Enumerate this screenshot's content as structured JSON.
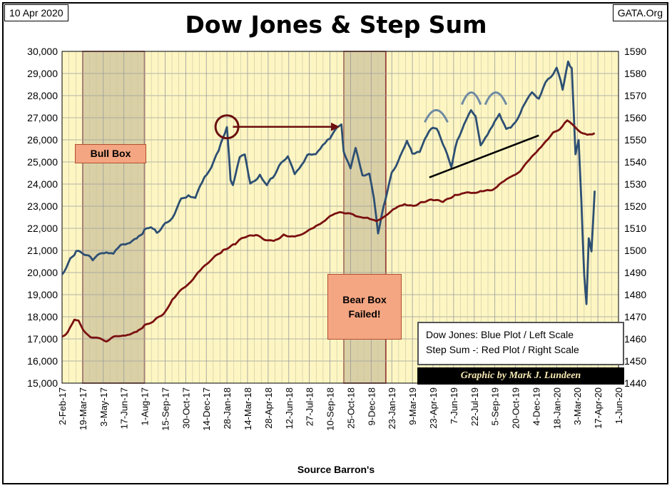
{
  "header": {
    "date": "10 Apr 2020",
    "source": "GATA.Org",
    "title": "Dow Jones & Step Sum"
  },
  "annotations": {
    "bull_box": "Bull Box",
    "bear_box": "Bear Box\nFailed!",
    "legend_line1": "Dow Jones: Blue Plot / Left Scale",
    "legend_line2": "Step Sum -: Red Plot / Right Scale",
    "credit": "Graphic by Mark J. Lundeen"
  },
  "chart_data": {
    "type": "line",
    "title": "Dow Jones & Step Sum",
    "xlabel": "Source Barron's",
    "x_ticks": [
      "2-Feb-17",
      "19-Mar-17",
      "3-May-17",
      "17-Jun-17",
      "1-Aug-17",
      "15-Sep-17",
      "30-Oct-17",
      "14-Dec-17",
      "28-Jan-18",
      "14-Mar-18",
      "28-Apr-18",
      "12-Jun-18",
      "27-Jul-18",
      "10-Sep-18",
      "25-Oct-18",
      "9-Dec-18",
      "23-Jan-19",
      "9-Mar-19",
      "23-Apr-19",
      "7-Jun-19",
      "22-Jul-19",
      "5-Sep-19",
      "20-Oct-19",
      "4-Dec-19",
      "18-Jan-20",
      "3-Mar-20",
      "17-Apr-20",
      "1-Jun-20"
    ],
    "y_left": {
      "min": 15000,
      "max": 30000,
      "ticks": [
        "15,000",
        "16,000",
        "17,000",
        "18,000",
        "19,000",
        "20,000",
        "21,000",
        "22,000",
        "23,000",
        "24,000",
        "25,000",
        "26,000",
        "27,000",
        "28,000",
        "29,000",
        "30,000"
      ]
    },
    "y_right": {
      "min": 1440,
      "max": 1590,
      "ticks": [
        "1440",
        "1450",
        "1460",
        "1470",
        "1480",
        "1490",
        "1500",
        "1510",
        "1520",
        "1530",
        "1540",
        "1550",
        "1560",
        "1570",
        "1580",
        "1590"
      ]
    },
    "grid": true,
    "series": [
      {
        "name": "Dow Jones",
        "axis": "left",
        "color": "#2d4f73",
        "points": [
          [
            "2017-02-02",
            19900
          ],
          [
            "2017-02-20",
            20600
          ],
          [
            "2017-03-05",
            20950
          ],
          [
            "2017-03-19",
            20900
          ],
          [
            "2017-04-10",
            20600
          ],
          [
            "2017-04-25",
            20800
          ],
          [
            "2017-05-10",
            20950
          ],
          [
            "2017-05-25",
            20850
          ],
          [
            "2017-06-10",
            21200
          ],
          [
            "2017-06-25",
            21350
          ],
          [
            "2017-07-15",
            21500
          ],
          [
            "2017-08-01",
            21900
          ],
          [
            "2017-08-15",
            22100
          ],
          [
            "2017-08-28",
            21800
          ],
          [
            "2017-09-15",
            22200
          ],
          [
            "2017-10-01",
            22500
          ],
          [
            "2017-10-20",
            23300
          ],
          [
            "2017-11-05",
            23500
          ],
          [
            "2017-11-20",
            23400
          ],
          [
            "2017-12-10",
            24300
          ],
          [
            "2017-12-25",
            24800
          ],
          [
            "2018-01-10",
            25500
          ],
          [
            "2018-01-28",
            26600
          ],
          [
            "2018-02-05",
            24200
          ],
          [
            "2018-02-10",
            24000
          ],
          [
            "2018-02-25",
            25200
          ],
          [
            "2018-03-08",
            25300
          ],
          [
            "2018-03-20",
            24000
          ],
          [
            "2018-03-30",
            24100
          ],
          [
            "2018-04-10",
            24400
          ],
          [
            "2018-04-25",
            24000
          ],
          [
            "2018-05-08",
            24300
          ],
          [
            "2018-05-22",
            24800
          ],
          [
            "2018-06-10",
            25300
          ],
          [
            "2018-06-25",
            24400
          ],
          [
            "2018-07-10",
            24900
          ],
          [
            "2018-07-27",
            25400
          ],
          [
            "2018-08-10",
            25300
          ],
          [
            "2018-08-25",
            25800
          ],
          [
            "2018-09-10",
            26100
          ],
          [
            "2018-09-25",
            26500
          ],
          [
            "2018-10-05",
            26700
          ],
          [
            "2018-10-10",
            25500
          ],
          [
            "2018-10-25",
            24700
          ],
          [
            "2018-11-05",
            25600
          ],
          [
            "2018-11-20",
            24400
          ],
          [
            "2018-12-05",
            24500
          ],
          [
            "2018-12-15",
            23300
          ],
          [
            "2018-12-24",
            21800
          ],
          [
            "2019-01-05",
            23000
          ],
          [
            "2019-01-23",
            24500
          ],
          [
            "2019-02-10",
            25200
          ],
          [
            "2019-02-25",
            26000
          ],
          [
            "2019-03-09",
            25400
          ],
          [
            "2019-03-25",
            25500
          ],
          [
            "2019-04-10",
            26200
          ],
          [
            "2019-04-23",
            26600
          ],
          [
            "2019-05-05",
            26400
          ],
          [
            "2019-05-15",
            25800
          ],
          [
            "2019-06-02",
            24800
          ],
          [
            "2019-06-15",
            26000
          ],
          [
            "2019-07-05",
            26900
          ],
          [
            "2019-07-15",
            27300
          ],
          [
            "2019-07-25",
            27100
          ],
          [
            "2019-08-05",
            25800
          ],
          [
            "2019-08-20",
            26200
          ],
          [
            "2019-09-05",
            26800
          ],
          [
            "2019-09-15",
            27200
          ],
          [
            "2019-09-30",
            26500
          ],
          [
            "2019-10-10",
            26500
          ],
          [
            "2019-10-25",
            27000
          ],
          [
            "2019-11-10",
            27700
          ],
          [
            "2019-11-25",
            28100
          ],
          [
            "2019-12-10",
            27900
          ],
          [
            "2019-12-25",
            28600
          ],
          [
            "2020-01-10",
            28900
          ],
          [
            "2020-01-18",
            29300
          ],
          [
            "2020-01-31",
            28300
          ],
          [
            "2020-02-12",
            29550
          ],
          [
            "2020-02-20",
            29200
          ],
          [
            "2020-02-28",
            25400
          ],
          [
            "2020-03-06",
            26000
          ],
          [
            "2020-03-12",
            23200
          ],
          [
            "2020-03-18",
            19900
          ],
          [
            "2020-03-23",
            18600
          ],
          [
            "2020-03-28",
            21600
          ],
          [
            "2020-04-03",
            21000
          ],
          [
            "2020-04-10",
            23700
          ]
        ]
      },
      {
        "name": "Step Sum",
        "axis": "right",
        "color": "#7a1010",
        "points": [
          [
            "2017-02-02",
            1461
          ],
          [
            "2017-02-15",
            1463
          ],
          [
            "2017-03-01",
            1469
          ],
          [
            "2017-03-10",
            1468
          ],
          [
            "2017-03-20",
            1464
          ],
          [
            "2017-04-05",
            1461
          ],
          [
            "2017-04-25",
            1460
          ],
          [
            "2017-05-10",
            1459
          ],
          [
            "2017-05-25",
            1461
          ],
          [
            "2017-06-10",
            1461
          ],
          [
            "2017-06-25",
            1462
          ],
          [
            "2017-07-15",
            1463
          ],
          [
            "2017-08-01",
            1466
          ],
          [
            "2017-08-20",
            1468
          ],
          [
            "2017-09-15",
            1472
          ],
          [
            "2017-10-01",
            1478
          ],
          [
            "2017-10-20",
            1482
          ],
          [
            "2017-11-10",
            1486
          ],
          [
            "2017-12-01",
            1491
          ],
          [
            "2017-12-25",
            1496
          ],
          [
            "2018-01-20",
            1500
          ],
          [
            "2018-02-15",
            1503
          ],
          [
            "2018-03-05",
            1506
          ],
          [
            "2018-04-01",
            1507
          ],
          [
            "2018-04-20",
            1505
          ],
          [
            "2018-05-10",
            1504
          ],
          [
            "2018-06-01",
            1507
          ],
          [
            "2018-06-25",
            1506
          ],
          [
            "2018-07-15",
            1508
          ],
          [
            "2018-08-05",
            1510
          ],
          [
            "2018-08-25",
            1513
          ],
          [
            "2018-09-15",
            1516
          ],
          [
            "2018-10-01",
            1517
          ],
          [
            "2018-10-20",
            1517
          ],
          [
            "2018-11-10",
            1515
          ],
          [
            "2018-12-01",
            1515
          ],
          [
            "2018-12-20",
            1513
          ],
          [
            "2019-01-10",
            1516
          ],
          [
            "2019-01-31",
            1519
          ],
          [
            "2019-02-20",
            1521
          ],
          [
            "2019-03-10",
            1520
          ],
          [
            "2019-04-01",
            1522
          ],
          [
            "2019-04-23",
            1523
          ],
          [
            "2019-05-15",
            1522
          ],
          [
            "2019-06-10",
            1525
          ],
          [
            "2019-06-30",
            1526
          ],
          [
            "2019-07-20",
            1526
          ],
          [
            "2019-08-10",
            1527
          ],
          [
            "2019-08-30",
            1527
          ],
          [
            "2019-09-20",
            1531
          ],
          [
            "2019-10-10",
            1533
          ],
          [
            "2019-10-30",
            1536
          ],
          [
            "2019-11-20",
            1541
          ],
          [
            "2019-12-10",
            1546
          ],
          [
            "2019-12-30",
            1550
          ],
          [
            "2020-01-10",
            1553
          ],
          [
            "2020-01-25",
            1555
          ],
          [
            "2020-02-10",
            1559
          ],
          [
            "2020-02-20",
            1557
          ],
          [
            "2020-03-01",
            1555
          ],
          [
            "2020-03-15",
            1553
          ],
          [
            "2020-03-25",
            1552
          ],
          [
            "2020-04-10",
            1553
          ]
        ]
      }
    ],
    "shaded_regions": [
      {
        "label": "Bull Box",
        "from": "2017-03-19",
        "to": "2017-08-01"
      },
      {
        "label": "Bear Box",
        "from": "2018-10-10",
        "to": "2019-01-10"
      }
    ],
    "trendline": {
      "color": "#000000",
      "from": [
        "2019-04-15",
        24300
      ],
      "to": [
        "2019-12-10",
        26200
      ]
    },
    "highlights": {
      "circle_at": [
        "2018-01-28",
        26200
      ],
      "arrow": {
        "from": [
          "2018-02-10",
          26200
        ],
        "to": [
          "2018-10-01",
          26200
        ]
      },
      "arcs": [
        {
          "from": "2019-04-05",
          "to": "2019-05-25",
          "y_base": 26600,
          "color": "#6e8aa3"
        },
        {
          "from": "2019-06-25",
          "to": "2019-08-05",
          "y_base": 27400,
          "color": "#6e8aa3"
        },
        {
          "from": "2019-08-15",
          "to": "2019-09-30",
          "y_base": 27400,
          "color": "#6e8aa3"
        }
      ]
    }
  }
}
